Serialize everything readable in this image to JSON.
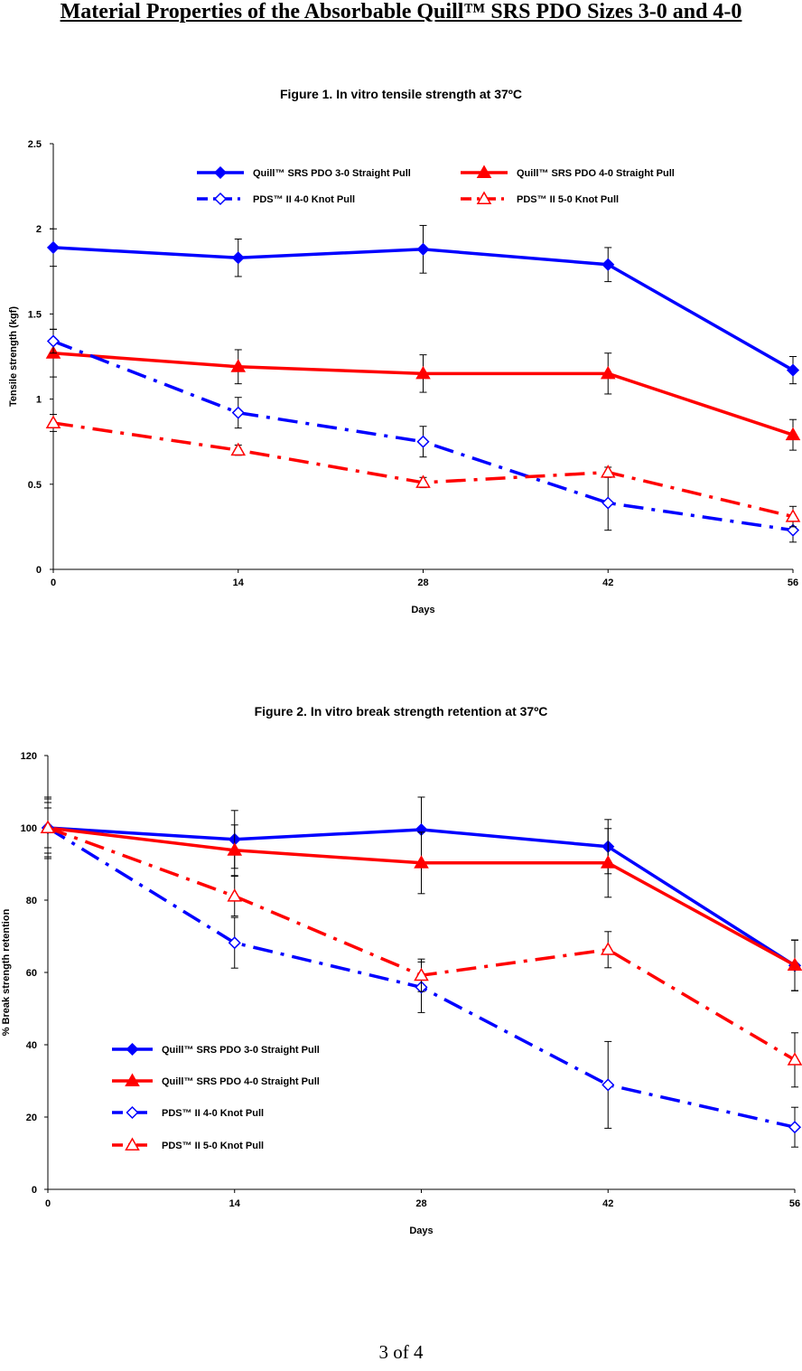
{
  "document": {
    "title": "Material Properties of the Absorbable Quill™ SRS PDO Sizes 3-0 and 4-0",
    "footer": "3 of 4"
  },
  "colors": {
    "blue": "#0000ff",
    "red": "#ff0000",
    "axis": "#000000"
  },
  "chart_data": [
    {
      "type": "line",
      "title": "Figure 1. In vitro tensile strength at 37ºC",
      "xlabel": "Days",
      "ylabel": "Tensile strength (kgf)",
      "x": [
        0,
        14,
        28,
        42,
        56
      ],
      "xticks": [
        "0",
        "14",
        "28",
        "42",
        "56"
      ],
      "yticks": [
        "0",
        "0.5",
        "1",
        "1.5",
        "2",
        "2.5"
      ],
      "ytick_values": [
        0,
        0.5,
        1,
        1.5,
        2,
        2.5
      ],
      "xlim": [
        0,
        56
      ],
      "ylim": [
        0,
        2.5
      ],
      "legend_position": "top",
      "series": [
        {
          "name": "Quill™ SRS PDO 3-0 Straight Pull",
          "color": "#0000ff",
          "dash": "solid",
          "marker": "diamond-filled",
          "values": [
            1.89,
            1.83,
            1.88,
            1.79,
            1.17
          ],
          "errors": [
            0.11,
            0.11,
            0.14,
            0.1,
            0.08
          ]
        },
        {
          "name": "Quill™ SRS PDO 4-0 Straight Pull",
          "color": "#ff0000",
          "dash": "solid",
          "marker": "triangle-filled",
          "values": [
            1.27,
            1.19,
            1.15,
            1.15,
            0.79
          ],
          "errors": [
            0.14,
            0.1,
            0.11,
            0.12,
            0.09
          ]
        },
        {
          "name": "PDS™ II 4-0 Knot Pull",
          "color": "#0000ff",
          "dash": "dashdot",
          "marker": "diamond-open",
          "values": [
            1.34,
            0.92,
            0.75,
            0.39,
            0.23
          ],
          "errors": [
            0.07,
            0.09,
            0.09,
            0.16,
            0.07
          ]
        },
        {
          "name": "PDS™ II 5-0 Knot Pull",
          "color": "#ff0000",
          "dash": "dashdot",
          "marker": "triangle-open",
          "values": [
            0.86,
            0.7,
            0.51,
            0.57,
            0.31
          ],
          "errors": [
            0.05,
            0.03,
            0.03,
            0.03,
            0.06
          ]
        }
      ]
    },
    {
      "type": "line",
      "title": "Figure 2. In vitro break strength retention at 37ºC",
      "xlabel": "Days",
      "ylabel": "% Break strength retention",
      "x": [
        0,
        14,
        28,
        42,
        56
      ],
      "xticks": [
        "0",
        "14",
        "28",
        "42",
        "56"
      ],
      "yticks": [
        "0",
        "20",
        "40",
        "60",
        "80",
        "100",
        "120"
      ],
      "ytick_values": [
        0,
        20,
        40,
        60,
        80,
        100,
        120
      ],
      "xlim": [
        0,
        56
      ],
      "ylim": [
        0,
        120
      ],
      "legend_position": "bottom-left",
      "series": [
        {
          "name": "Quill™ SRS PDO 3-0 Straight Pull",
          "color": "#0000ff",
          "dash": "solid",
          "marker": "diamond-filled",
          "values": [
            100,
            96.8,
            99.5,
            94.8,
            61.9
          ],
          "errors": [
            8.5,
            8.0,
            9.0,
            7.5,
            7.0
          ]
        },
        {
          "name": "Quill™ SRS PDO 4-0 Straight Pull",
          "color": "#ff0000",
          "dash": "solid",
          "marker": "triangle-filled",
          "values": [
            100,
            93.8,
            90.3,
            90.3,
            62.0
          ],
          "errors": [
            8.0,
            7.0,
            8.5,
            9.5,
            7.0
          ]
        },
        {
          "name": "PDS™ II 4-0 Knot Pull",
          "color": "#0000ff",
          "dash": "dashdot",
          "marker": "diamond-open",
          "values": [
            100,
            68.2,
            55.9,
            28.9,
            17.2
          ],
          "errors": [
            7.0,
            7.0,
            7.0,
            12.0,
            5.5
          ]
        },
        {
          "name": "PDS™ II 5-0 Knot Pull",
          "color": "#ff0000",
          "dash": "dashdot",
          "marker": "triangle-open",
          "values": [
            100,
            81.1,
            59.2,
            66.3,
            35.8
          ],
          "errors": [
            5.5,
            5.5,
            4.5,
            5.0,
            7.5
          ]
        }
      ]
    }
  ]
}
